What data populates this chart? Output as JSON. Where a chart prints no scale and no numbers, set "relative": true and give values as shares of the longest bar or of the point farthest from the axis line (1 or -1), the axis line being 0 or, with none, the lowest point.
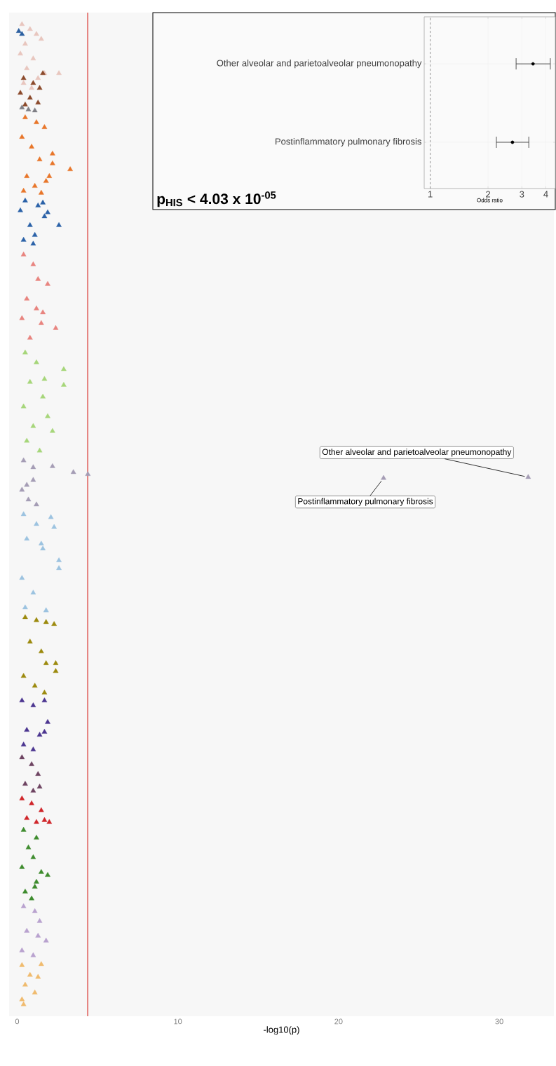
{
  "chart_data": [
    {
      "type": "scatter",
      "relative": true,
      "xlabel": "-log10(p)",
      "xlim": [
        -0.5,
        33.4
      ],
      "xticks": [
        0,
        10,
        20,
        30
      ],
      "marker": "triangle",
      "ref_lines": [
        {
          "axis": "x",
          "value": 4.39,
          "color": "#d9312b"
        }
      ],
      "annotations": [
        {
          "text": "Other alveolar and parietoalveolar pneumonopathy",
          "x": 31.8,
          "y": 0.538
        },
        {
          "text": "Postinflammatory pulmonary fibrosis",
          "x": 22.8,
          "y": 0.537
        }
      ],
      "series": [
        {
          "color": "#e8c6be",
          "x": [
            0.3,
            0.8,
            1.2,
            0.5,
            1.5,
            0.2,
            1.0,
            0.6,
            1.7,
            2.6,
            1.3,
            0.4,
            0.9
          ],
          "values": [
            1.0,
            0.995,
            0.99,
            0.98,
            0.985,
            0.97,
            0.965,
            0.955,
            0.95,
            0.95,
            0.945,
            0.94,
            0.935
          ]
        },
        {
          "color": "#2b5fa0",
          "x": [
            0.1,
            0.3
          ],
          "values": [
            0.993,
            0.99
          ]
        },
        {
          "color": "#8b4a2b",
          "x": [
            0.4,
            1.0,
            1.4,
            0.2,
            0.8,
            1.3,
            0.5,
            1.6
          ],
          "values": [
            0.945,
            0.94,
            0.935,
            0.93,
            0.925,
            0.92,
            0.918,
            0.95
          ]
        },
        {
          "color": "#7f7f85",
          "x": [
            0.3,
            0.7,
            1.1
          ],
          "values": [
            0.915,
            0.913,
            0.912
          ]
        },
        {
          "color": "#e8762a",
          "x": [
            0.5,
            1.2,
            1.7,
            0.3,
            0.9,
            2.2,
            1.4,
            2.2,
            3.3,
            0.6,
            1.8,
            1.1,
            0.4,
            1.5,
            2.0
          ],
          "values": [
            0.905,
            0.9,
            0.895,
            0.885,
            0.875,
            0.868,
            0.862,
            0.858,
            0.852,
            0.845,
            0.84,
            0.835,
            0.83,
            0.828,
            0.845
          ]
        },
        {
          "color": "#2b62a8",
          "x": [
            0.5,
            1.3,
            0.2,
            1.6,
            0.8,
            1.1,
            2.6,
            0.4,
            1.0,
            1.9,
            1.7
          ],
          "values": [
            0.82,
            0.815,
            0.81,
            0.818,
            0.795,
            0.785,
            0.795,
            0.78,
            0.776,
            0.808,
            0.804
          ]
        },
        {
          "color": "#e8847f",
          "x": [
            0.4,
            1.0,
            1.3,
            1.9,
            0.6,
            1.2,
            0.3,
            1.5,
            2.4,
            0.8,
            1.6
          ],
          "values": [
            0.765,
            0.755,
            0.74,
            0.735,
            0.72,
            0.71,
            0.7,
            0.695,
            0.69,
            0.68,
            0.706
          ]
        },
        {
          "color": "#a6d67a",
          "x": [
            0.5,
            1.2,
            2.9,
            2.9,
            0.8,
            1.6,
            0.4,
            1.9,
            1.0,
            2.2,
            0.6,
            1.4,
            1.7
          ],
          "values": [
            0.665,
            0.655,
            0.648,
            0.632,
            0.635,
            0.62,
            0.61,
            0.6,
            0.59,
            0.585,
            0.575,
            0.565,
            0.638
          ]
        },
        {
          "color": "#a59db5",
          "x": [
            0.4,
            1.0,
            2.2,
            3.5,
            4.4,
            1.0,
            0.3,
            0.7,
            1.2,
            0.6,
            31.8,
            22.8
          ],
          "values": [
            0.555,
            0.548,
            0.549,
            0.543,
            0.541,
            0.535,
            0.525,
            0.515,
            0.51,
            0.53,
            0.538,
            0.537
          ]
        },
        {
          "color": "#9cc3e0",
          "x": [
            0.4,
            2.1,
            1.2,
            2.3,
            0.6,
            1.6,
            2.6,
            2.6,
            0.3,
            1.0,
            1.8,
            0.5,
            1.5
          ],
          "values": [
            0.5,
            0.497,
            0.49,
            0.487,
            0.475,
            0.465,
            0.453,
            0.445,
            0.435,
            0.42,
            0.402,
            0.405,
            0.47
          ]
        },
        {
          "color": "#9c8a0e",
          "x": [
            0.5,
            1.2,
            1.8,
            2.3,
            0.8,
            1.5,
            2.4,
            2.4,
            1.8,
            0.4,
            1.1,
            1.7
          ],
          "values": [
            0.395,
            0.392,
            0.39,
            0.388,
            0.37,
            0.36,
            0.348,
            0.34,
            0.348,
            0.335,
            0.325,
            0.318
          ]
        },
        {
          "color": "#4b3590",
          "x": [
            0.3,
            1.0,
            1.7,
            1.9,
            1.7,
            0.6,
            1.4,
            0.4,
            1.0
          ],
          "values": [
            0.31,
            0.305,
            0.31,
            0.288,
            0.278,
            0.28,
            0.275,
            0.265,
            0.26
          ]
        },
        {
          "color": "#6e4462",
          "x": [
            0.3,
            0.9,
            1.3,
            0.5,
            1.0,
            1.4
          ],
          "values": [
            0.252,
            0.245,
            0.235,
            0.225,
            0.218,
            0.222
          ]
        },
        {
          "color": "#d0262a",
          "x": [
            0.3,
            0.9,
            1.5,
            2.0,
            0.6,
            1.2,
            1.7
          ],
          "values": [
            0.21,
            0.205,
            0.198,
            0.186,
            0.19,
            0.186,
            0.188
          ]
        },
        {
          "color": "#3e8c2e",
          "x": [
            0.4,
            1.2,
            0.7,
            1.0,
            0.3,
            1.9,
            1.5,
            1.2,
            0.5,
            0.9,
            1.1
          ],
          "values": [
            0.178,
            0.17,
            0.16,
            0.15,
            0.14,
            0.132,
            0.135,
            0.125,
            0.115,
            0.108,
            0.12
          ]
        },
        {
          "color": "#b9a2cf",
          "x": [
            0.4,
            1.1,
            1.4,
            0.6,
            1.3,
            1.8,
            0.3,
            1.0
          ],
          "values": [
            0.1,
            0.095,
            0.085,
            0.075,
            0.07,
            0.065,
            0.055,
            0.05
          ]
        },
        {
          "color": "#f0bb6e",
          "x": [
            0.3,
            1.5,
            0.8,
            1.3,
            0.5,
            1.1,
            0.3,
            0.4
          ],
          "values": [
            0.04,
            0.041,
            0.03,
            0.028,
            0.02,
            0.012,
            0.005,
            0.0
          ]
        }
      ]
    },
    {
      "type": "scatter",
      "orientation": "horizontal",
      "xlabel": "Odds ratio",
      "log": "x",
      "grid": true,
      "marker": "circle",
      "color": "#000000",
      "xlim": [
        0.93,
        4.48
      ],
      "xticks": [
        1,
        2,
        3,
        4
      ],
      "categories": [
        "Other alveolar and parietoalveolar pneumonopathy",
        "Postinflammatory pulmonary fibrosis"
      ],
      "values": [
        3.43,
        2.68
      ],
      "errors": [
        [
          2.8,
          4.22
        ],
        [
          2.21,
          3.26
        ]
      ],
      "ref_lines": [
        {
          "axis": "x",
          "value": 1,
          "color": "#555555",
          "line_style": "dashed"
        }
      ],
      "annotations": [
        "p$_{HIS}$ < 4.03 x 10$^{-05}$"
      ]
    }
  ]
}
